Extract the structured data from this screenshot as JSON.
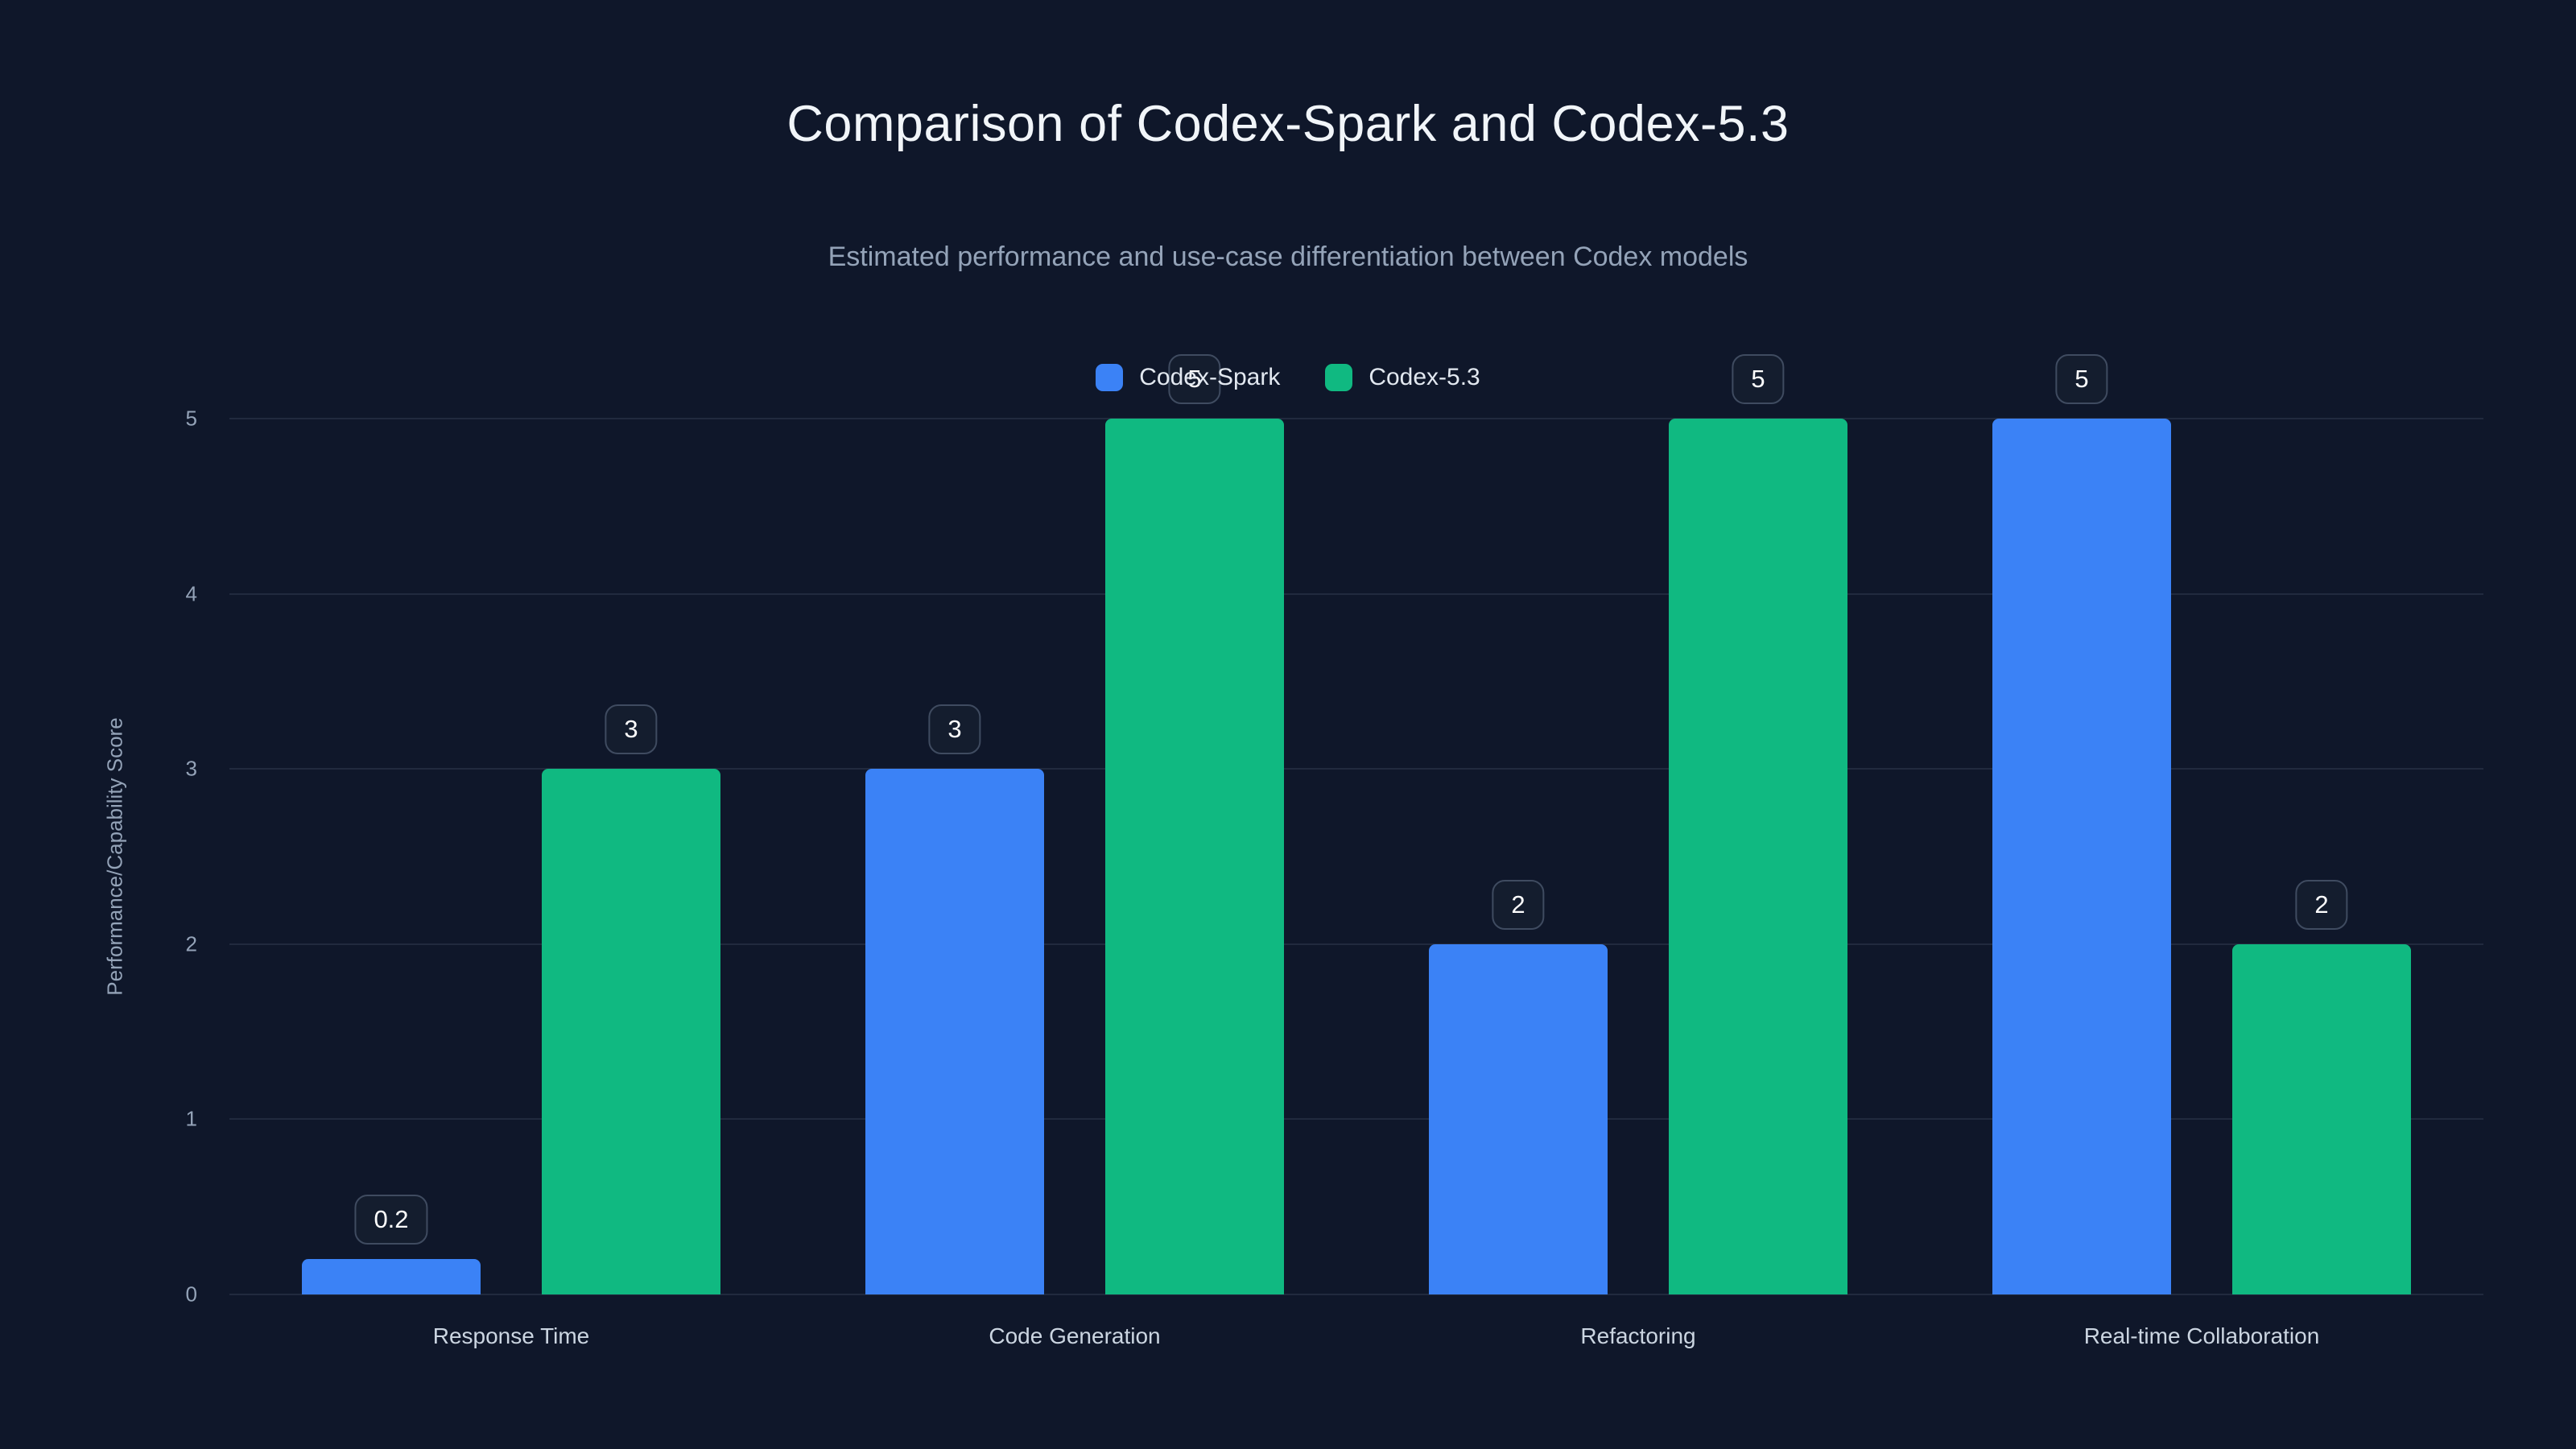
{
  "chart_data": {
    "type": "bar",
    "title": "Comparison of Codex-Spark and Codex-5.3",
    "subtitle": "Estimated performance and use-case differentiation between Codex models",
    "categories": [
      "Response Time",
      "Code Generation",
      "Refactoring",
      "Real-time Collaboration"
    ],
    "series": [
      {
        "name": "Codex-Spark",
        "color": "#3b82f6",
        "values": [
          0.2,
          3,
          2,
          5
        ]
      },
      {
        "name": "Codex-5.3",
        "color": "#10b981",
        "values": [
          3,
          5,
          5,
          2
        ]
      }
    ],
    "value_labels": {
      "Codex-Spark": [
        "0.2",
        "3",
        "2",
        "5"
      ],
      "Codex-5.3": [
        "3",
        "5",
        "5",
        "2"
      ]
    },
    "ylabel": "Performance/Capability Score",
    "yticks": [
      0,
      1,
      2,
      3,
      4,
      5
    ],
    "ylim": [
      0,
      5
    ],
    "legend_position": "top-center",
    "grid": true
  },
  "colors": {
    "background": "#0f172a",
    "title_color": "#f1f5f9",
    "subtitle_color": "#94a3b8",
    "axis_text": "#94a3b8",
    "category_text": "#cbd5e1",
    "gridline": "rgba(148,163,184,0.14)",
    "badge_background": "#141d2e",
    "badge_border": "#3f4b60"
  }
}
